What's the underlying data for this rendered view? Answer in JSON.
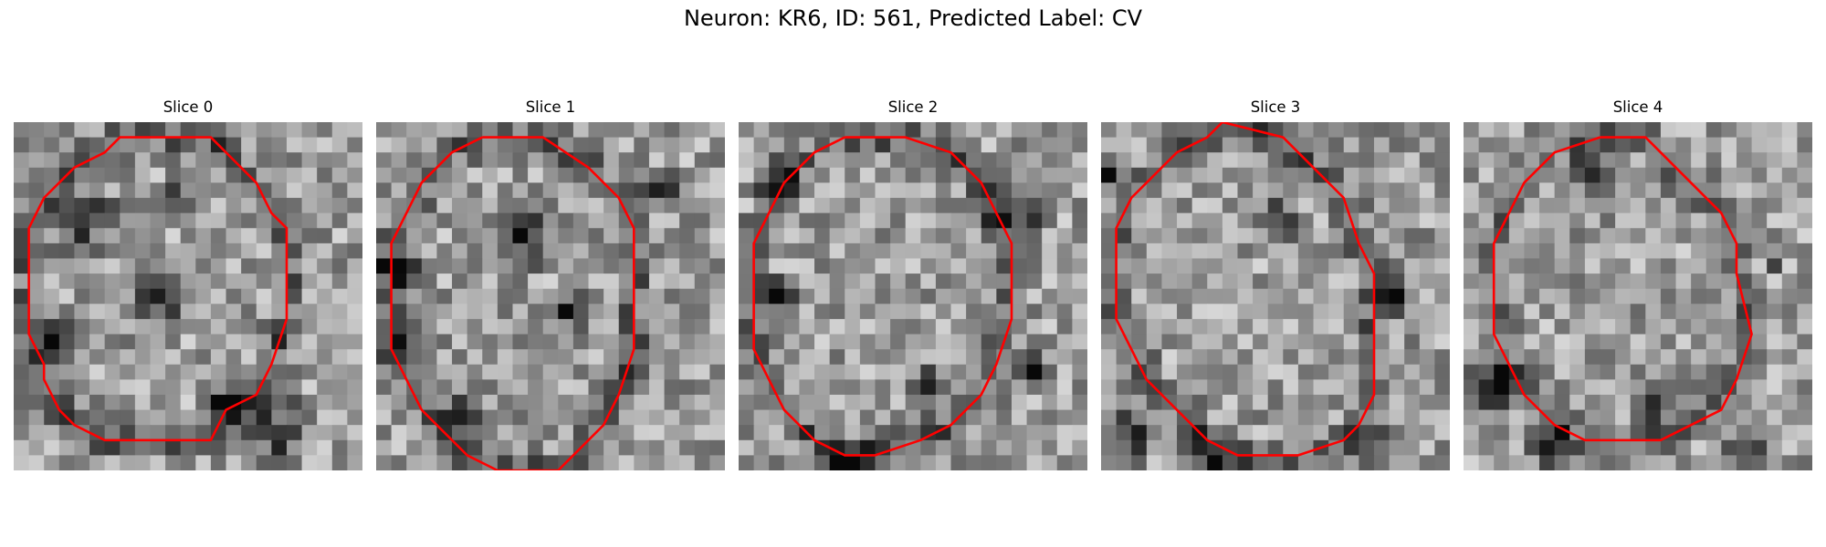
{
  "figure": {
    "title": "Neuron: KR6, ID: 561, Predicted Label: CV"
  },
  "contour_color": "#ff0000",
  "colormap": "gray",
  "panels": [
    {
      "title": "Slice 0",
      "seed": 11,
      "outline": [
        [
          9,
          1
        ],
        [
          13,
          1
        ],
        [
          16,
          4
        ],
        [
          17,
          6
        ],
        [
          18,
          7
        ],
        [
          18,
          10
        ],
        [
          18,
          13
        ],
        [
          17,
          16
        ],
        [
          16,
          18
        ],
        [
          14,
          19
        ],
        [
          13,
          21
        ],
        [
          9,
          21
        ],
        [
          6,
          21
        ],
        [
          4,
          20
        ],
        [
          3,
          19
        ],
        [
          2,
          17
        ],
        [
          2,
          16
        ],
        [
          1,
          14
        ],
        [
          1,
          11
        ],
        [
          1,
          9
        ],
        [
          1,
          7
        ],
        [
          2,
          5
        ],
        [
          3,
          4
        ],
        [
          4,
          3
        ],
        [
          6,
          2
        ],
        [
          7,
          1
        ],
        [
          9,
          1
        ]
      ],
      "dark": [
        [
          4,
          6,
          3
        ],
        [
          9,
          11,
          3
        ],
        [
          10,
          5,
          2
        ],
        [
          14,
          18,
          3
        ],
        [
          17,
          20,
          3
        ],
        [
          2,
          14,
          2
        ]
      ]
    },
    {
      "title": "Slice 1",
      "seed": 23,
      "outline": [
        [
          7,
          1
        ],
        [
          11,
          1
        ],
        [
          14,
          3
        ],
        [
          16,
          5
        ],
        [
          17,
          7
        ],
        [
          17,
          11
        ],
        [
          17,
          15
        ],
        [
          16,
          18
        ],
        [
          15,
          20
        ],
        [
          13,
          22
        ],
        [
          12,
          23
        ],
        [
          8,
          23
        ],
        [
          6,
          22
        ],
        [
          4,
          20
        ],
        [
          3,
          19
        ],
        [
          2,
          17
        ],
        [
          1,
          15
        ],
        [
          1,
          11
        ],
        [
          1,
          8
        ],
        [
          2,
          6
        ],
        [
          3,
          4
        ],
        [
          4,
          3
        ],
        [
          5,
          2
        ],
        [
          7,
          1
        ]
      ],
      "dark": [
        [
          1,
          9,
          2
        ],
        [
          1,
          14,
          2
        ],
        [
          9,
          7,
          3
        ],
        [
          12,
          12,
          2
        ],
        [
          18,
          4,
          2
        ],
        [
          5,
          19,
          2
        ]
      ]
    },
    {
      "title": "Slice 2",
      "seed": 37,
      "outline": [
        [
          7,
          1
        ],
        [
          11,
          1
        ],
        [
          14,
          2
        ],
        [
          16,
          4
        ],
        [
          17,
          6
        ],
        [
          18,
          8
        ],
        [
          18,
          13
        ],
        [
          17,
          16
        ],
        [
          16,
          18
        ],
        [
          14,
          20
        ],
        [
          12,
          21
        ],
        [
          9,
          22
        ],
        [
          7,
          22
        ],
        [
          5,
          21
        ],
        [
          3,
          19
        ],
        [
          2,
          17
        ],
        [
          1,
          15
        ],
        [
          1,
          11
        ],
        [
          1,
          8
        ],
        [
          2,
          6
        ],
        [
          3,
          4
        ],
        [
          5,
          2
        ],
        [
          7,
          1
        ]
      ],
      "dark": [
        [
          18,
          5,
          3
        ],
        [
          19,
          16,
          2
        ],
        [
          2,
          3,
          2
        ],
        [
          12,
          17,
          2
        ],
        [
          2,
          11,
          2
        ],
        [
          7,
          22,
          2
        ]
      ]
    },
    {
      "title": "Slice 3",
      "seed": 49,
      "outline": [
        [
          8,
          0
        ],
        [
          12,
          1
        ],
        [
          14,
          3
        ],
        [
          16,
          5
        ],
        [
          17,
          8
        ],
        [
          18,
          10
        ],
        [
          18,
          14
        ],
        [
          18,
          18
        ],
        [
          17,
          20
        ],
        [
          16,
          21
        ],
        [
          13,
          22
        ],
        [
          11,
          22
        ],
        [
          9,
          22
        ],
        [
          7,
          21
        ],
        [
          5,
          19
        ],
        [
          3,
          17
        ],
        [
          2,
          15
        ],
        [
          1,
          13
        ],
        [
          1,
          10
        ],
        [
          1,
          7
        ],
        [
          2,
          5
        ],
        [
          3,
          4
        ],
        [
          5,
          2
        ],
        [
          7,
          1
        ],
        [
          8,
          0
        ]
      ],
      "dark": [
        [
          1,
          20,
          3
        ],
        [
          7,
          22,
          3
        ],
        [
          17,
          21,
          2
        ],
        [
          0,
          3,
          2
        ],
        [
          19,
          11,
          2
        ],
        [
          11,
          6,
          2
        ]
      ]
    },
    {
      "title": "Slice 4",
      "seed": 61,
      "outline": [
        [
          9,
          1
        ],
        [
          12,
          1
        ],
        [
          14,
          3
        ],
        [
          15,
          4
        ],
        [
          17,
          6
        ],
        [
          18,
          8
        ],
        [
          18,
          10
        ],
        [
          19,
          14
        ],
        [
          18,
          17
        ],
        [
          17,
          19
        ],
        [
          15,
          20
        ],
        [
          13,
          21
        ],
        [
          10,
          21
        ],
        [
          8,
          21
        ],
        [
          6,
          20
        ],
        [
          4,
          18
        ],
        [
          3,
          16
        ],
        [
          2,
          14
        ],
        [
          2,
          11
        ],
        [
          2,
          8
        ],
        [
          3,
          6
        ],
        [
          4,
          4
        ],
        [
          6,
          2
        ],
        [
          9,
          1
        ]
      ],
      "dark": [
        [
          1,
          17,
          3
        ],
        [
          5,
          21,
          2
        ],
        [
          8,
          3,
          2
        ],
        [
          18,
          21,
          2
        ],
        [
          12,
          18,
          2
        ],
        [
          20,
          9,
          1
        ]
      ]
    }
  ]
}
